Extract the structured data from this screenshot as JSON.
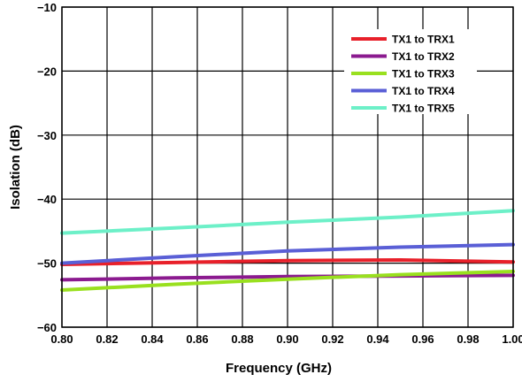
{
  "chart_data": {
    "type": "line",
    "title": "",
    "xlabel": "Frequency (GHz)",
    "ylabel": "Isolation (dB)",
    "xlim": [
      0.8,
      1.0
    ],
    "ylim": [
      -60,
      -10
    ],
    "x_ticks": [
      0.8,
      0.82,
      0.84,
      0.86,
      0.88,
      0.9,
      0.92,
      0.94,
      0.96,
      0.98,
      1.0
    ],
    "x_tick_labels": [
      "0.80",
      "0.82",
      "0.84",
      "0.86",
      "0.88",
      "0.90",
      "0.92",
      "0.94",
      "0.96",
      "0.98",
      "1.00"
    ],
    "y_ticks": [
      -10,
      -20,
      -30,
      -40,
      -50,
      -60
    ],
    "y_tick_labels": [
      "−10",
      "−20",
      "−30",
      "−40",
      "−50",
      "−60"
    ],
    "grid": true,
    "legend_position": "top-right",
    "x": [
      0.8,
      0.85,
      0.9,
      0.95,
      1.0
    ],
    "series": [
      {
        "name": "TX1 to TRX1",
        "color": "#e8202a",
        "values": [
          -50.2,
          -49.9,
          -49.6,
          -49.5,
          -49.8
        ]
      },
      {
        "name": "TX1 to TRX2",
        "color": "#8b1a8f",
        "values": [
          -52.6,
          -52.3,
          -52.1,
          -52.0,
          -51.9
        ]
      },
      {
        "name": "TX1 to TRX3",
        "color": "#99e01f",
        "values": [
          -54.2,
          -53.3,
          -52.5,
          -51.8,
          -51.3
        ]
      },
      {
        "name": "TX1 to TRX4",
        "color": "#5a5fd6",
        "values": [
          -50.0,
          -49.0,
          -48.1,
          -47.5,
          -47.1
        ]
      },
      {
        "name": "TX1 to TRX5",
        "color": "#6df0c8",
        "values": [
          -45.3,
          -44.5,
          -43.6,
          -42.8,
          -41.8
        ]
      }
    ]
  }
}
